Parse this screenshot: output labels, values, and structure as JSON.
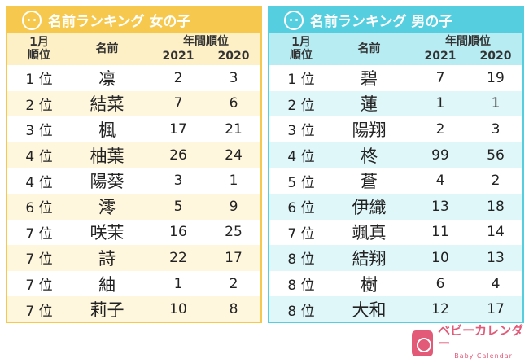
{
  "girls": {
    "title": "名前ランキング 女の子",
    "col_rank": "1月\n順位",
    "col_rank_l1": "1月",
    "col_rank_l2": "順位",
    "col_name": "名前",
    "col_year": "年間順位",
    "y1": "2021",
    "y2": "2020",
    "rows": [
      {
        "rank": "1 位",
        "name": "凛",
        "a": "2",
        "b": "3"
      },
      {
        "rank": "2 位",
        "name": "結菜",
        "a": "7",
        "b": "6"
      },
      {
        "rank": "3 位",
        "name": "楓",
        "a": "17",
        "b": "21"
      },
      {
        "rank": "4 位",
        "name": "柚葉",
        "a": "26",
        "b": "24"
      },
      {
        "rank": "4 位",
        "name": "陽葵",
        "a": "3",
        "b": "1"
      },
      {
        "rank": "6 位",
        "name": "澪",
        "a": "5",
        "b": "9"
      },
      {
        "rank": "7 位",
        "name": "咲茉",
        "a": "16",
        "b": "25"
      },
      {
        "rank": "7 位",
        "name": "詩",
        "a": "22",
        "b": "17"
      },
      {
        "rank": "7 位",
        "name": "紬",
        "a": "1",
        "b": "2"
      },
      {
        "rank": "7 位",
        "name": "莉子",
        "a": "10",
        "b": "8"
      }
    ]
  },
  "boys": {
    "title": "名前ランキング 男の子",
    "col_rank_l1": "1月",
    "col_rank_l2": "順位",
    "col_name": "名前",
    "col_year": "年間順位",
    "y1": "2021",
    "y2": "2020",
    "rows": [
      {
        "rank": "1 位",
        "name": "碧",
        "a": "7",
        "b": "19"
      },
      {
        "rank": "2 位",
        "name": "蓮",
        "a": "1",
        "b": "1"
      },
      {
        "rank": "3 位",
        "name": "陽翔",
        "a": "2",
        "b": "3"
      },
      {
        "rank": "4 位",
        "name": "柊",
        "a": "99",
        "b": "56"
      },
      {
        "rank": "5 位",
        "name": "蒼",
        "a": "4",
        "b": "2"
      },
      {
        "rank": "6 位",
        "name": "伊織",
        "a": "13",
        "b": "18"
      },
      {
        "rank": "7 位",
        "name": "颯真",
        "a": "11",
        "b": "14"
      },
      {
        "rank": "8 位",
        "name": "結翔",
        "a": "10",
        "b": "13"
      },
      {
        "rank": "8 位",
        "name": "樹",
        "a": "6",
        "b": "4"
      },
      {
        "rank": "8 位",
        "name": "大和",
        "a": "12",
        "b": "17"
      }
    ]
  },
  "logo": {
    "jp": "ベビーカレンダー",
    "en": "Baby Calendar"
  },
  "colors": {
    "girl": "#f6c94e",
    "boy": "#55cfe0",
    "brand": "#e25a78"
  }
}
